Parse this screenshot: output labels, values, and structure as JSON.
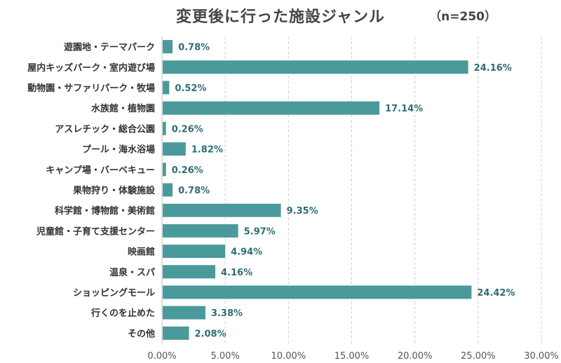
{
  "chart_data": {
    "type": "bar",
    "orientation": "horizontal",
    "title": "変更後に行った施設ジャンル",
    "subtitle": "（n=250）",
    "categories": [
      "遊園地・テーマパーク",
      "屋内キッズパーク・室内遊び場",
      "動物園・サファリパーク・牧場",
      "水族館・植物園",
      "アスレチック・総合公園",
      "プール・海水浴場",
      "キャンプ場・バーベキュー",
      "果物狩り・体験施設",
      "科学館・博物館・美術館",
      "児童館・子育て支援センター",
      "映画館",
      "温泉・スパ",
      "ショッピングモール",
      "行くのを止めた",
      "その他"
    ],
    "values": [
      0.78,
      24.16,
      0.52,
      17.14,
      0.26,
      1.82,
      0.26,
      0.78,
      9.35,
      5.97,
      4.94,
      4.16,
      24.42,
      3.38,
      2.08
    ],
    "value_labels": [
      "0.78%",
      "24.16%",
      "0.52%",
      "17.14%",
      "0.26%",
      "1.82%",
      "0.26%",
      "0.78%",
      "9.35%",
      "5.97%",
      "4.94%",
      "4.16%",
      "24.42%",
      "3.38%",
      "2.08%"
    ],
    "xlim": [
      0,
      30
    ],
    "xticks": [
      0,
      5,
      10,
      15,
      20,
      25,
      30
    ],
    "xtick_labels": [
      "0.00%",
      "5.00%",
      "10.00%",
      "15.00%",
      "20.00%",
      "25.00%",
      "30.00%"
    ],
    "grid": "vertical dashed",
    "bar_color": "#4a9a9b",
    "label_color": "#2e6e73"
  }
}
